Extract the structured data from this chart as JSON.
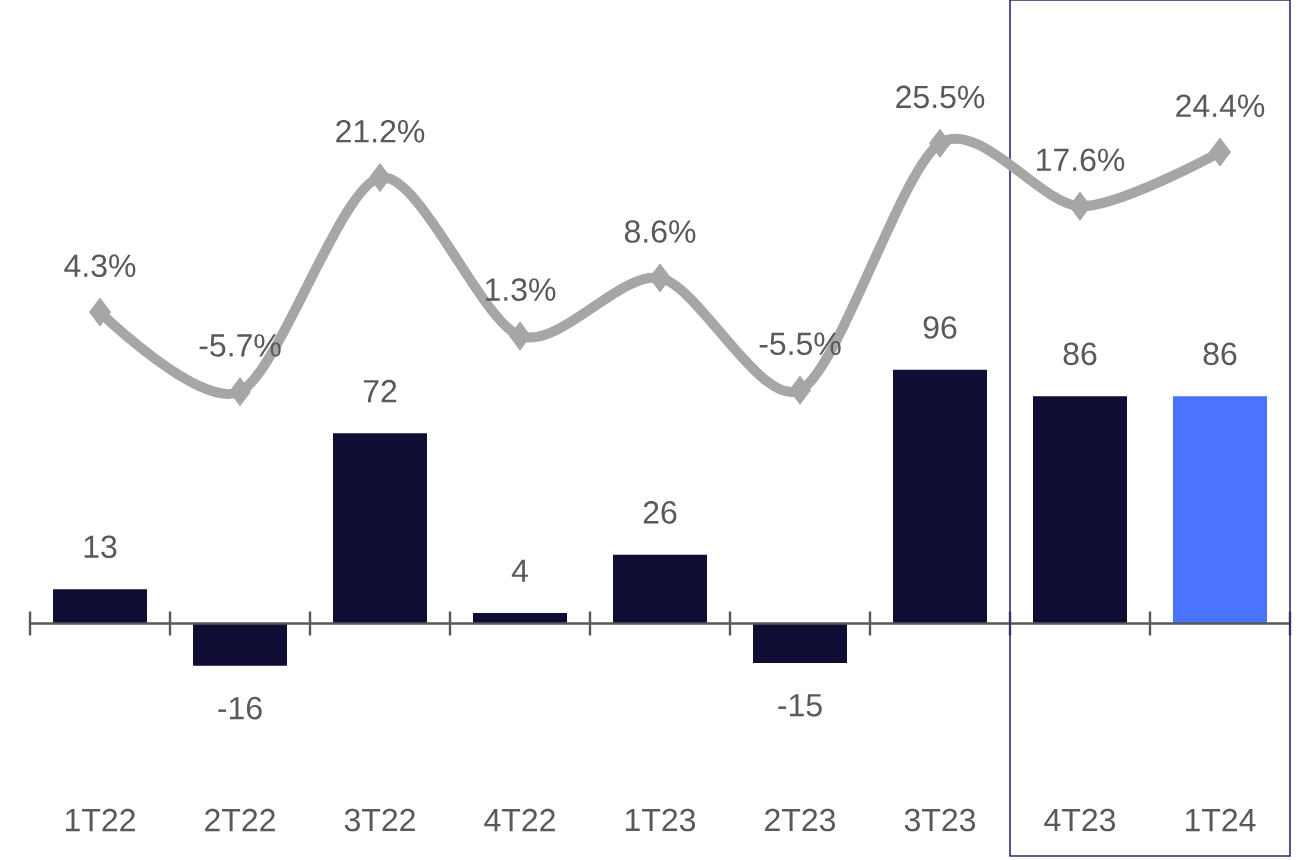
{
  "chart_data": {
    "type": "bar",
    "categories": [
      "1T22",
      "2T22",
      "3T22",
      "4T22",
      "1T23",
      "2T23",
      "3T23",
      "4T23",
      "1T24"
    ],
    "series": [
      {
        "colors": [
          "#100d35",
          "#100d35",
          "#100d35",
          "#100d35",
          "#100d35",
          "#100d35",
          "#100d35",
          "#100d35",
          "#4a74ff"
        ],
        "values": [
          13,
          -16,
          72,
          4,
          26,
          -15,
          96,
          86,
          86
        ]
      },
      {
        "type": "line",
        "axis": "y2",
        "color": "#a6a6a6",
        "marker": "diamond",
        "line_style": "solid",
        "values": [
          4.3,
          -5.7,
          21.2,
          1.3,
          8.6,
          -5.5,
          25.5,
          17.6,
          24.4
        ],
        "value_labels": [
          "4.3%",
          "-5.7%",
          "21.2%",
          "1.3%",
          "8.6%",
          "-5.5%",
          "25.5%",
          "17.6%",
          "24.4%"
        ]
      }
    ],
    "data_labels": true,
    "ylim": [
      -88,
      236
    ],
    "y2lim": [
      -64,
      43.5
    ],
    "tick_labels": "x"
  }
}
